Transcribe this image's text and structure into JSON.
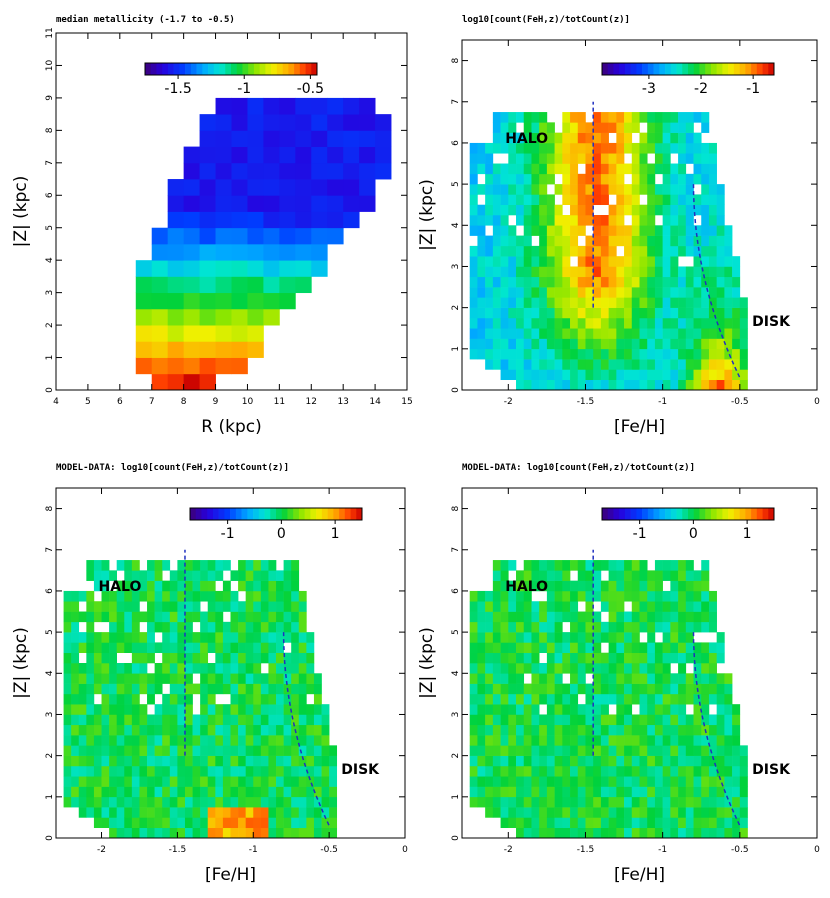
{
  "chart_data": [
    {
      "type": "heatmap",
      "title": "median metallicity (-1.7 to -0.5)",
      "xlabel": "R (kpc)",
      "ylabel": "|Z| (kpc)",
      "xlim": [
        4,
        15
      ],
      "ylim": [
        0,
        11
      ],
      "xticks": [
        "4",
        "5",
        "6",
        "7",
        "8",
        "9",
        "10",
        "11",
        "12",
        "13",
        "14",
        "15"
      ],
      "yticks": [
        "0",
        "1",
        "2",
        "3",
        "4",
        "5",
        "6",
        "7",
        "8",
        "9",
        "10",
        "11"
      ],
      "colorbar": {
        "min": -1.75,
        "max": -0.45,
        "ticks": [
          "-1.5",
          "-1",
          "-0.5"
        ],
        "tick_values": [
          -1.5,
          -1,
          -0.5
        ]
      },
      "annotations": [],
      "description_of_values": "median [Fe/H] per (R, |Z|) cell; approx. -0.5 near the plane at R≈7-9 kpc, decreasing to about -1.5 at |Z|>5 kpc"
    },
    {
      "type": "heatmap",
      "title": "log10[count(FeH,z)/totCount(z)]",
      "xlabel": "[Fe/H]",
      "ylabel": "|Z| (kpc)",
      "xlim": [
        -2.3,
        0
      ],
      "ylim": [
        0,
        8.5
      ],
      "xticks": [
        "-2",
        "-1.5",
        "-1",
        "-0.5",
        "0"
      ],
      "yticks": [
        "0",
        "1",
        "2",
        "3",
        "4",
        "5",
        "6",
        "7",
        "8"
      ],
      "colorbar": {
        "min": -3.9,
        "max": -0.6,
        "ticks": [
          "-3",
          "-2",
          "-1"
        ],
        "tick_values": [
          -3,
          -2,
          -1
        ]
      },
      "annotations": [
        "HALO",
        "DISK"
      ],
      "halo_line": {
        "feh": -1.45,
        "z_range": [
          2,
          7
        ]
      },
      "disk_curve": {
        "feh_range": [
          -0.8,
          -0.5
        ],
        "z_range": [
          0.3,
          5
        ]
      }
    },
    {
      "type": "heatmap",
      "title": "MODEL-DATA: log10[count(FeH,z)/totCount(z)]",
      "xlabel": "[Fe/H]",
      "ylabel": "|Z| (kpc)",
      "xlim": [
        -2.3,
        0
      ],
      "ylim": [
        0,
        8.5
      ],
      "xticks": [
        "-2",
        "-1.5",
        "-1",
        "-0.5",
        "0"
      ],
      "yticks": [
        "0",
        "1",
        "2",
        "3",
        "4",
        "5",
        "6",
        "7",
        "8"
      ],
      "colorbar": {
        "min": -1.7,
        "max": 1.5,
        "ticks": [
          "-1",
          "0",
          "1"
        ],
        "tick_values": [
          -1,
          0,
          1
        ]
      },
      "annotations": [
        "HALO",
        "DISK"
      ],
      "halo_line": {
        "feh": -1.45,
        "z_range": [
          2,
          7
        ]
      },
      "disk_curve": {
        "feh_range": [
          -0.8,
          -0.5
        ],
        "z_range": [
          0.3,
          5
        ]
      }
    },
    {
      "type": "heatmap",
      "title": "MODEL-DATA: log10[count(FeH,z)/totCount(z)]",
      "xlabel": "[Fe/H]",
      "ylabel": "|Z| (kpc)",
      "xlim": [
        -2.3,
        0
      ],
      "ylim": [
        0,
        8.5
      ],
      "xticks": [
        "-2",
        "-1.5",
        "-1",
        "-0.5",
        "0"
      ],
      "yticks": [
        "0",
        "1",
        "2",
        "3",
        "4",
        "5",
        "6",
        "7",
        "8"
      ],
      "colorbar": {
        "min": -1.7,
        "max": 1.5,
        "ticks": [
          "-1",
          "0",
          "1"
        ],
        "tick_values": [
          -1,
          0,
          1
        ]
      },
      "annotations": [
        "HALO",
        "DISK"
      ],
      "halo_line": {
        "feh": -1.45,
        "z_range": [
          2,
          7
        ]
      },
      "disk_curve": {
        "feh_range": [
          -0.8,
          -0.5
        ],
        "z_range": [
          0.3,
          5
        ]
      }
    }
  ]
}
